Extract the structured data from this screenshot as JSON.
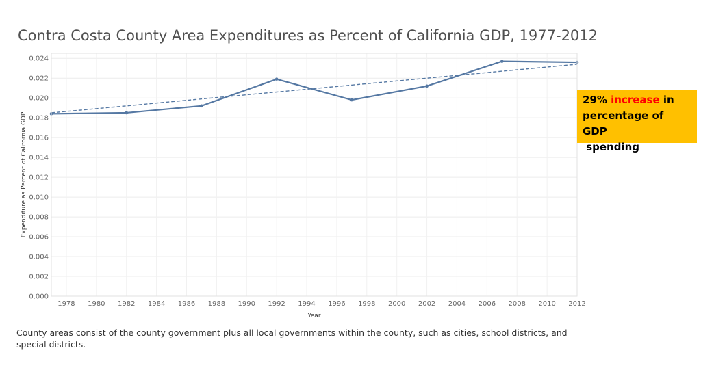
{
  "title": "Contra Costa County Area Expenditures as Percent of California GDP, 1977-2012",
  "callout": {
    "prefix": "29% ",
    "highlight": "increase",
    "suffix_1": " in",
    "line_2": "percentage of GDP",
    "line_3": " spending",
    "bg_color": "#ffc000",
    "highlight_color": "#ff0000"
  },
  "footnote": "County areas consist of the county government plus all local governments within the county, such as cities, school districts, and special districts.",
  "chart_data": {
    "type": "line",
    "title": "Contra Costa County Area Expenditures as Percent of California GDP, 1977-2012",
    "xlabel": "Year",
    "ylabel": "Expenditure as Percent of California GDP",
    "xlim": [
      1977,
      2012
    ],
    "ylim": [
      0,
      0.0245
    ],
    "x_ticks": [
      "1978",
      "1980",
      "1982",
      "1984",
      "1986",
      "1988",
      "1990",
      "1992",
      "1994",
      "1996",
      "1998",
      "2000",
      "2002",
      "2004",
      "2006",
      "2008",
      "2010",
      "2012"
    ],
    "y_ticks": [
      "0.000",
      "0.002",
      "0.004",
      "0.006",
      "0.008",
      "0.010",
      "0.012",
      "0.014",
      "0.016",
      "0.018",
      "0.020",
      "0.022",
      "0.024"
    ],
    "grid": true,
    "series": [
      {
        "color": "#5578a3",
        "x": [
          1977,
          1982,
          1987,
          1992,
          1997,
          2002,
          2007,
          2012
        ],
        "y": [
          0.0184,
          0.0185,
          0.0192,
          0.0219,
          0.0198,
          0.0212,
          0.0237,
          0.0236
        ]
      },
      {
        "style": "dashed",
        "color": "#5578a3",
        "x": [
          1977,
          2012
        ],
        "y": [
          0.0185,
          0.0234
        ]
      }
    ]
  }
}
